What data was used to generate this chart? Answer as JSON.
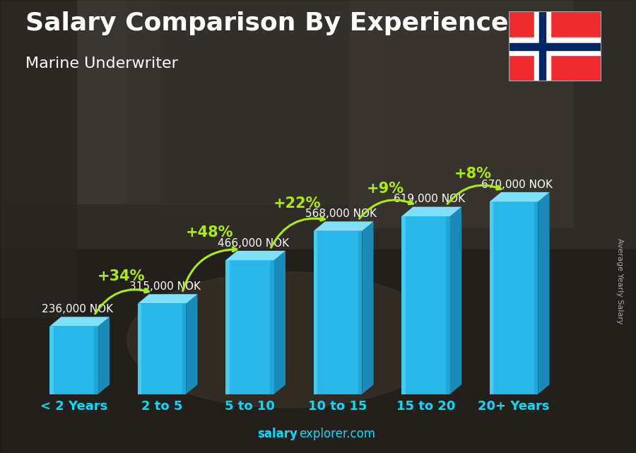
{
  "title": "Salary Comparison By Experience",
  "subtitle": "Marine Underwriter",
  "categories": [
    "< 2 Years",
    "2 to 5",
    "5 to 10",
    "10 to 15",
    "15 to 20",
    "20+ Years"
  ],
  "values": [
    236000,
    315000,
    466000,
    568000,
    619000,
    670000
  ],
  "labels": [
    "236,000 NOK",
    "315,000 NOK",
    "466,000 NOK",
    "568,000 NOK",
    "619,000 NOK",
    "670,000 NOK"
  ],
  "pct_labels": [
    "+34%",
    "+48%",
    "+22%",
    "+9%",
    "+8%"
  ],
  "front_color": "#29b6e8",
  "top_color": "#7fe0f8",
  "side_color": "#1a8ab8",
  "bg_color": "#3a3a3a",
  "text_white": "#ffffff",
  "text_green": "#aaee00",
  "text_cyan": "#00ddff",
  "text_gray": "#dddddd",
  "ylabel": "Average Yearly Salary",
  "footer_bold": "salary",
  "footer_normal": "explorer.com",
  "ylim_max": 820000,
  "title_fontsize": 26,
  "subtitle_fontsize": 16,
  "cat_fontsize": 13,
  "pct_fontsize": 15,
  "label_fontsize": 11
}
